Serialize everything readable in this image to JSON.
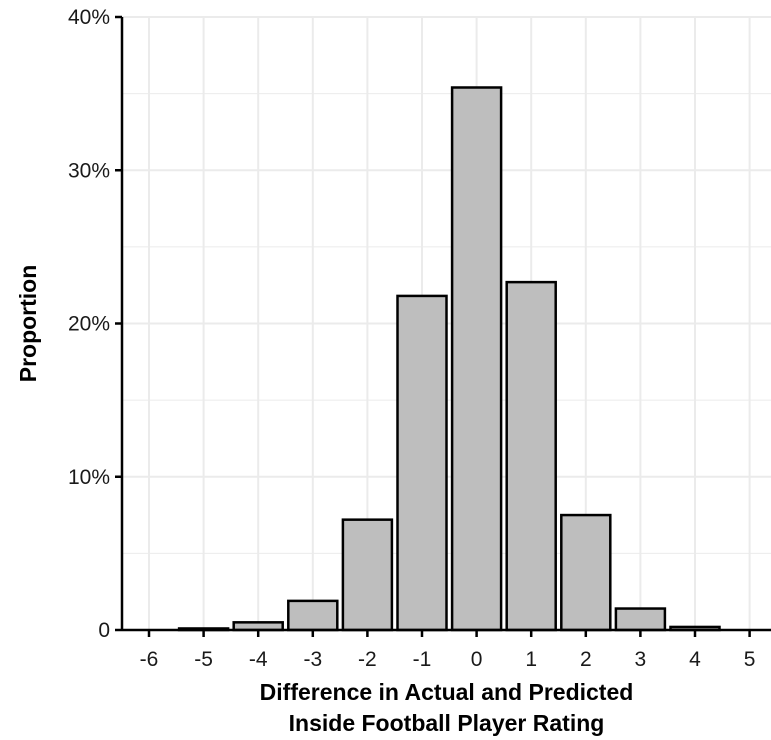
{
  "chart_data": {
    "type": "bar",
    "title": "",
    "xlabel": [
      "Difference in Actual and Predicted",
      "Inside Football Player Rating"
    ],
    "ylabel": "Proportion",
    "categories": [
      "-6",
      "-5",
      "-4",
      "-3",
      "-2",
      "-1",
      "0",
      "1",
      "2",
      "3",
      "4",
      "5"
    ],
    "values": [
      0.0,
      0.1,
      0.5,
      1.9,
      7.2,
      21.8,
      35.4,
      22.7,
      7.5,
      1.4,
      0.2,
      0.0
    ],
    "value_unit": "%",
    "ylim": [
      0,
      40
    ],
    "yticks": [
      0,
      10,
      20,
      30,
      40
    ],
    "ytick_labels": [
      "0",
      "10%",
      "20%",
      "30%",
      "40%"
    ],
    "grid": true,
    "legend": "none",
    "colors": {
      "bar_fill": "#bebebe",
      "bar_stroke": "#000000",
      "grid": "#ebebeb",
      "axis": "#000000"
    }
  }
}
